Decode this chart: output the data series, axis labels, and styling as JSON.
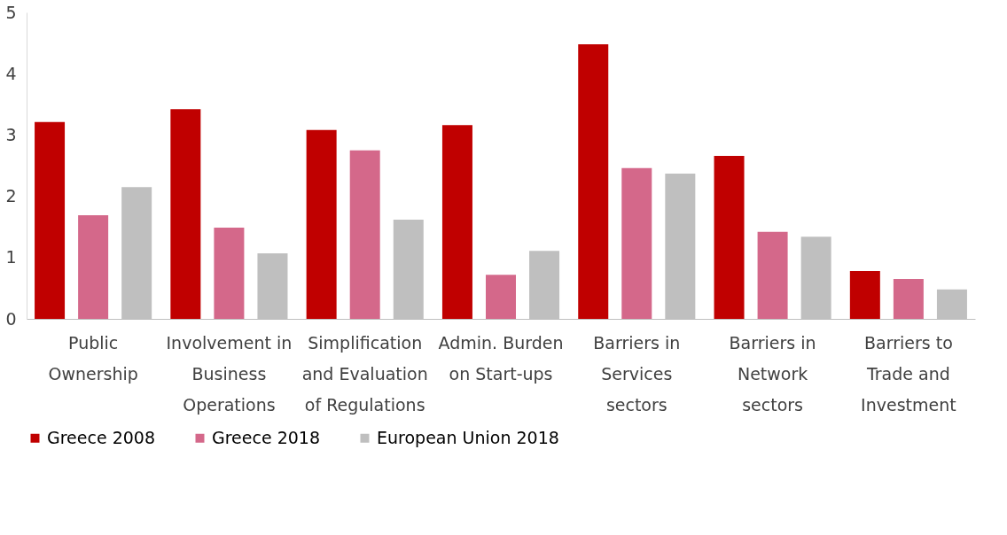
{
  "chart_data": {
    "type": "bar",
    "categories": [
      "Public Ownership",
      "Involvement in Business Operations",
      "Simplification and Evaluation of Regulations",
      "Admin. Burden  on Start-ups",
      "Barriers in Services sectors",
      "Barriers in Network sectors",
      "Barriers to Trade and Investment"
    ],
    "series": [
      {
        "name": "Greece 2008",
        "color": "#c00000",
        "values": [
          3.21,
          3.42,
          3.08,
          3.16,
          4.48,
          2.66,
          0.78
        ]
      },
      {
        "name": "Greece 2018",
        "color": "#d4688a",
        "values": [
          1.69,
          1.49,
          2.75,
          0.72,
          2.46,
          1.42,
          0.65
        ]
      },
      {
        "name": "European Union 2018",
        "color": "#bfbfbf",
        "values": [
          2.15,
          1.07,
          1.62,
          1.11,
          2.37,
          1.34,
          0.48
        ]
      }
    ],
    "ylim": [
      0,
      5
    ],
    "yticks": [
      0,
      1,
      2,
      3,
      4,
      5
    ],
    "grid": false,
    "legend": "bottom"
  }
}
